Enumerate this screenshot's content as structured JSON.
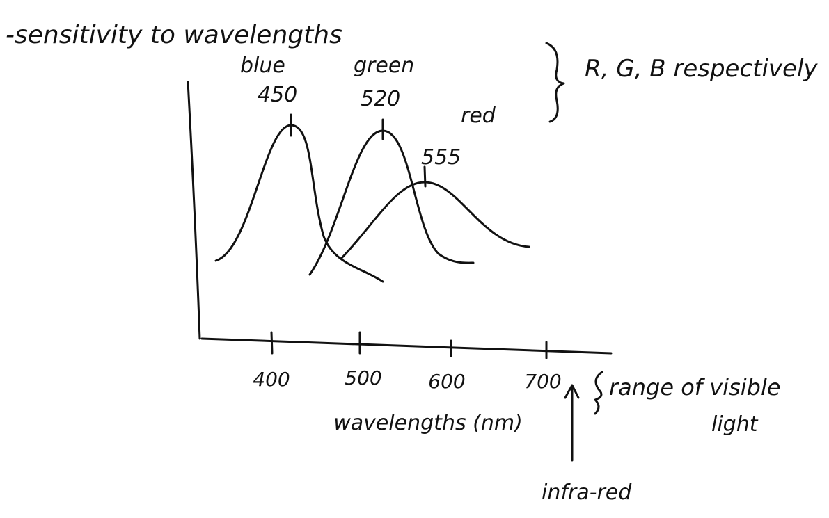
{
  "title": "-sensitivity to wavelengths",
  "peaks": [
    {
      "label": "blue",
      "wavelength": 450
    },
    {
      "label": "green",
      "wavelength": 520
    },
    {
      "label": "red",
      "wavelength": 555
    }
  ],
  "peaks_note": "R, G, B respectively",
  "x_axis": {
    "ticks": [
      400,
      500,
      600,
      700
    ],
    "label": "wavelengths (nm)"
  },
  "range_note": [
    "range of visible",
    "light"
  ],
  "infra_red": "infra-red"
}
